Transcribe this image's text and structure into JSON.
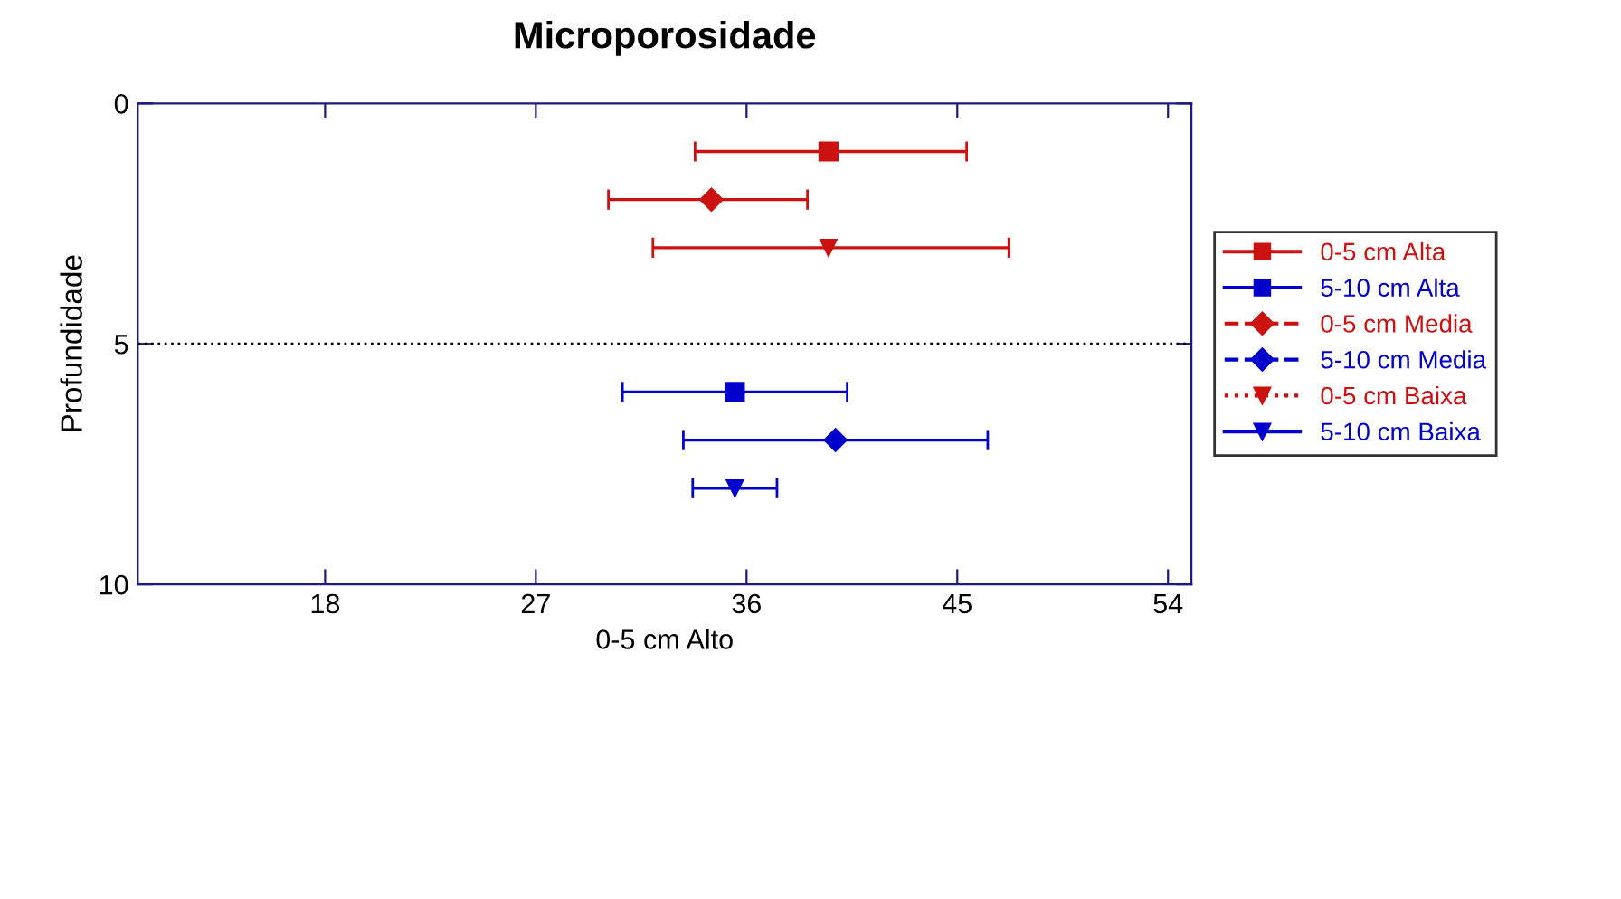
{
  "chart_data": {
    "type": "scatter",
    "title": "Microporosidade",
    "xlabel": "0-5 cm Alto",
    "ylabel": "Profundidade",
    "xlim": [
      10,
      55
    ],
    "xticks": [
      18,
      27,
      36,
      45,
      54
    ],
    "ylim": [
      10,
      0
    ],
    "yticks": [
      0,
      5,
      10
    ],
    "grid": false,
    "legend": "right",
    "ref_lines": [
      {
        "axis": "y",
        "value": 5,
        "line_style": "dotted",
        "color": "#000000"
      }
    ],
    "series": [
      {
        "name": "0-5 cm Alta",
        "color": "#cc1111",
        "x": [
          39.5
        ],
        "values": [
          1
        ],
        "xerrors": [
          [
            33.8,
            45.4
          ]
        ],
        "marker": "square",
        "line_style": "solid"
      },
      {
        "name": "5-10 cm Alta",
        "color": "#0000cc",
        "x": [
          35.5
        ],
        "values": [
          6
        ],
        "xerrors": [
          [
            30.7,
            40.3
          ]
        ],
        "marker": "square",
        "line_style": "solid"
      },
      {
        "name": "0-5 cm Media",
        "color": "#cc1111",
        "x": [
          34.5
        ],
        "values": [
          2
        ],
        "xerrors": [
          [
            30.1,
            38.6
          ]
        ],
        "marker": "diamond",
        "line_style": "dashed"
      },
      {
        "name": "5-10 cm Media",
        "color": "#0000cc",
        "x": [
          39.8
        ],
        "values": [
          7
        ],
        "xerrors": [
          [
            33.3,
            46.3
          ]
        ],
        "marker": "diamond",
        "line_style": "dashed"
      },
      {
        "name": "0-5 cm Baixa",
        "color": "#cc1111",
        "x": [
          39.5
        ],
        "values": [
          3
        ],
        "xerrors": [
          [
            32.0,
            47.2
          ]
        ],
        "marker": "triangle",
        "line_style": "dotted"
      },
      {
        "name": "5-10 cm Baixa",
        "color": "#0000cc",
        "x": [
          35.5
        ],
        "values": [
          8
        ],
        "xerrors": [
          [
            33.7,
            37.3
          ]
        ],
        "marker": "triangle",
        "line_style": "solid"
      }
    ]
  }
}
